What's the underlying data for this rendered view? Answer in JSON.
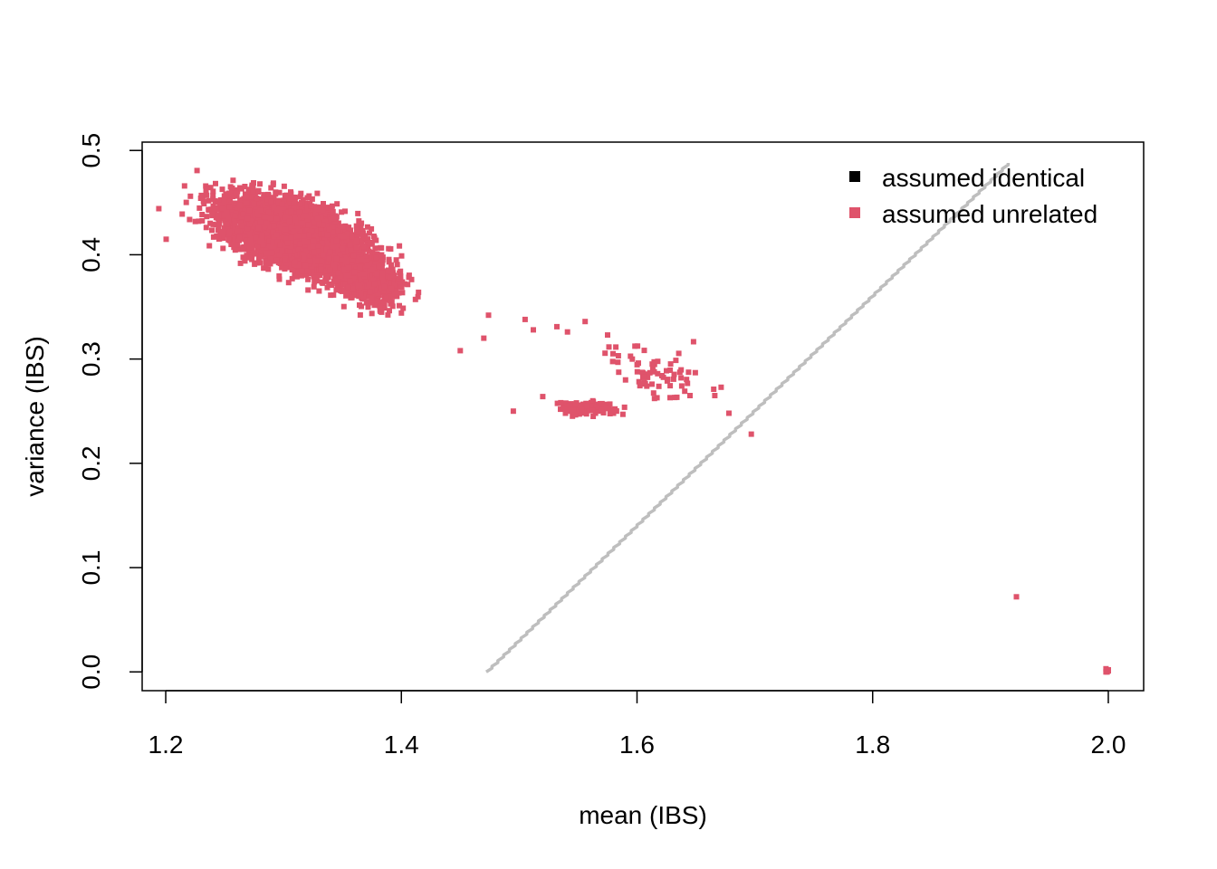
{
  "chart_data": {
    "type": "scatter",
    "title": "",
    "xlabel": "mean (IBS)",
    "ylabel": "variance (IBS)",
    "xlim": [
      1.18,
      2.03
    ],
    "ylim": [
      -0.018,
      0.508
    ],
    "x_ticks": [
      1.2,
      1.4,
      1.6,
      1.8,
      2.0
    ],
    "x_tick_labels": [
      "1.2",
      "1.4",
      "1.6",
      "1.8",
      "2.0"
    ],
    "y_ticks": [
      0.0,
      0.1,
      0.2,
      0.3,
      0.4,
      0.5
    ],
    "y_tick_labels": [
      "0.0",
      "0.1",
      "0.2",
      "0.3",
      "0.4",
      "0.5"
    ],
    "grid": false,
    "legend": {
      "position": "top-right",
      "entries": [
        {
          "label": "assumed identical",
          "color": "#000000"
        },
        {
          "label": "assumed unrelated",
          "color": "#DF536B"
        }
      ]
    },
    "series": [
      {
        "name": "assumed unrelated",
        "color": "#DF536B",
        "clusters": [
          {
            "cx": 1.31,
            "cy": 0.418,
            "sx": 0.028,
            "sy": 0.017,
            "rho": -0.55,
            "n": 5000
          },
          {
            "cx": 1.37,
            "cy": 0.375,
            "sx": 0.015,
            "sy": 0.012,
            "rho": -0.3,
            "n": 500
          },
          {
            "cx": 1.555,
            "cy": 0.253,
            "sx": 0.012,
            "sy": 0.003,
            "rho": 0.0,
            "n": 120
          },
          {
            "cx": 1.615,
            "cy": 0.285,
            "sx": 0.022,
            "sy": 0.012,
            "rho": -0.4,
            "n": 70
          }
        ],
        "points": [
          [
            1.214,
            0.439
          ],
          [
            1.216,
            0.466
          ],
          [
            1.495,
            0.25
          ],
          [
            1.52,
            0.264
          ],
          [
            1.532,
            0.331
          ],
          [
            1.556,
            0.336
          ],
          [
            1.575,
            0.323
          ],
          [
            1.45,
            0.308
          ],
          [
            1.47,
            0.32
          ],
          [
            1.474,
            0.342
          ],
          [
            1.505,
            0.338
          ],
          [
            1.512,
            0.328
          ],
          [
            1.541,
            0.326
          ],
          [
            1.58,
            0.248
          ],
          [
            1.588,
            0.247
          ],
          [
            1.645,
            0.265
          ],
          [
            1.666,
            0.265
          ],
          [
            1.678,
            0.248
          ],
          [
            1.697,
            0.228
          ],
          [
            1.922,
            0.072
          ],
          [
            1.998,
            0.003
          ],
          [
            2.0,
            0.001
          ],
          [
            1.999,
            0.0
          ],
          [
            2.0,
            0.002
          ],
          [
            1.998,
            0.0
          ]
        ]
      },
      {
        "name": "assumed identical",
        "color": "#000000",
        "points": []
      }
    ],
    "reference_line": {
      "color": "#BEBEBE",
      "from": [
        1.472,
        0.0
      ],
      "to": [
        1.915,
        0.488
      ]
    }
  }
}
